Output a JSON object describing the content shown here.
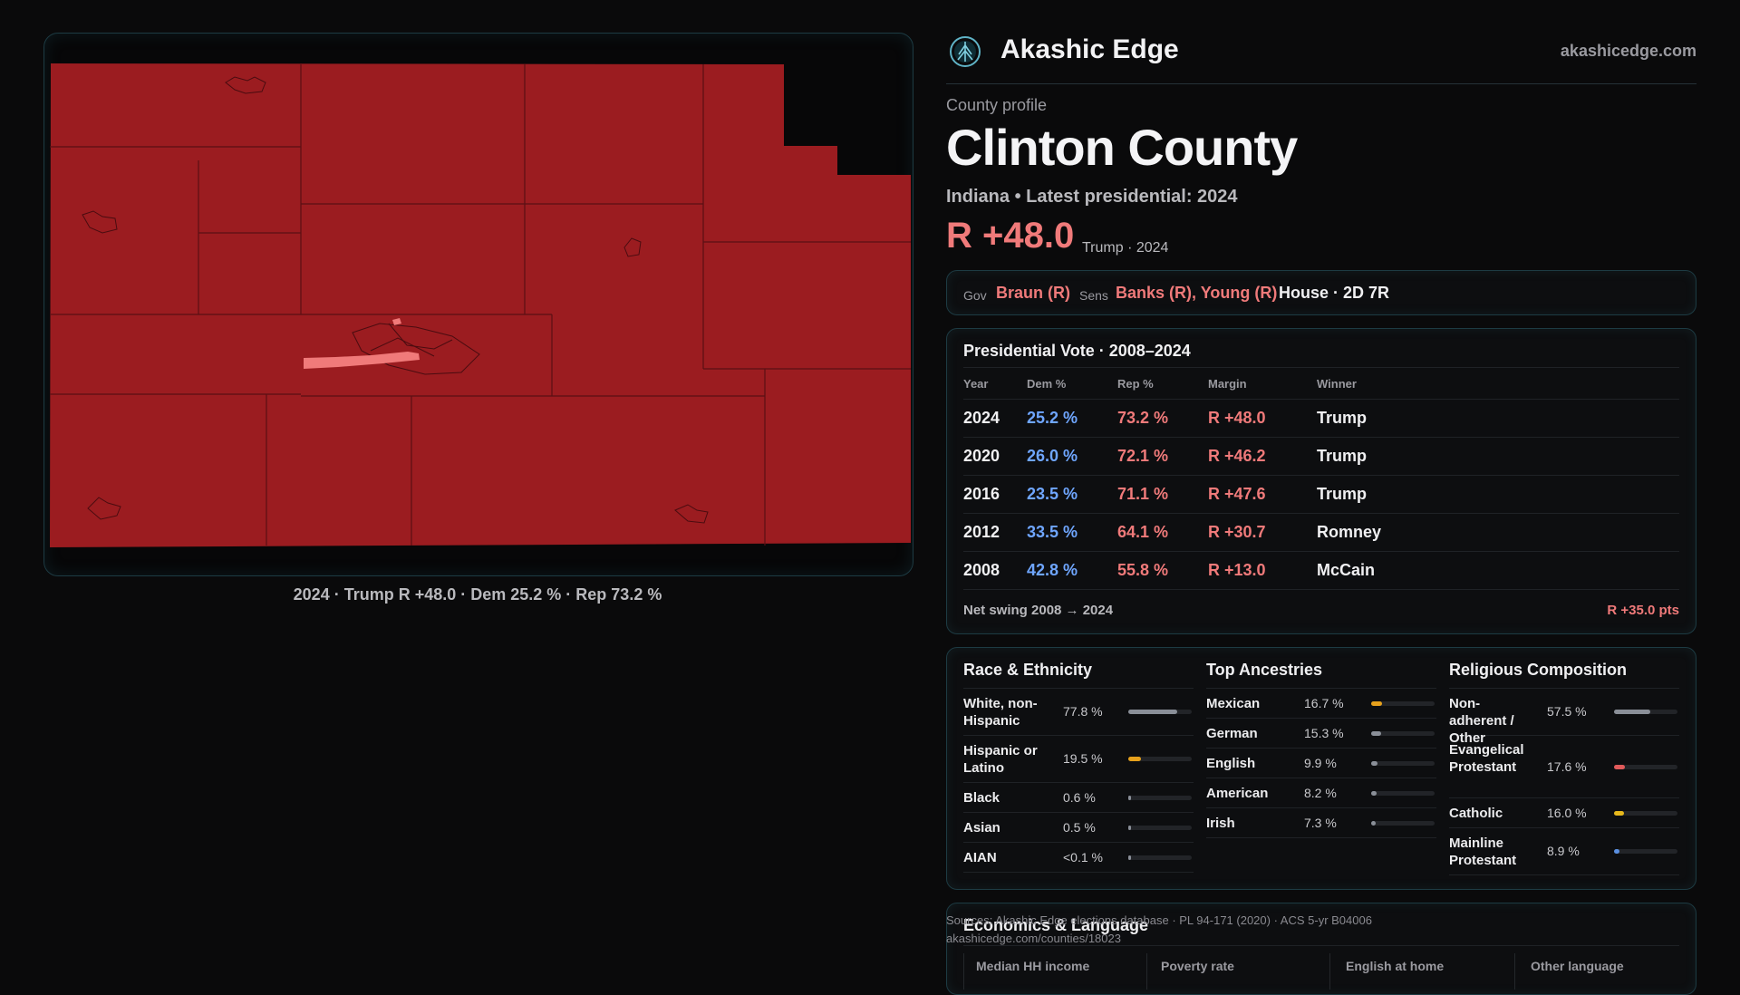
{
  "map": {
    "fill_color": "#9b1c20",
    "highlight_color": "#f07a7a",
    "caption": "2024 · Trump R +48.0 · Dem 25.2 % · Rep 73.2 %"
  },
  "header": {
    "brand": "Akashic Edge",
    "site": "akashicedge.com",
    "logo_icon": "tree-of-life-icon"
  },
  "profile": {
    "eyebrow": "County profile",
    "title": "Clinton County",
    "subtitle": "Indiana • Latest presidential: 2024",
    "margin": "R +48.0",
    "margin_note": "Trump · 2024"
  },
  "offices": {
    "gov_label": "Gov",
    "gov_value": "Braun (R)",
    "sens_label": "Sens",
    "sens_value": "Banks (R), Young (R)",
    "house": "House · 2D 7R"
  },
  "presidential": {
    "title": "Presidential Vote · 2008–2024",
    "headers": [
      "Year",
      "Dem %",
      "Rep %",
      "Margin",
      "Winner"
    ],
    "rows": [
      {
        "year": "2024",
        "dem": "25.2 %",
        "rep": "73.2 %",
        "margin": "R +48.0",
        "winner": "Trump"
      },
      {
        "year": "2020",
        "dem": "26.0 %",
        "rep": "72.1 %",
        "margin": "R +46.2",
        "winner": "Trump"
      },
      {
        "year": "2016",
        "dem": "23.5 %",
        "rep": "71.1 %",
        "margin": "R +47.6",
        "winner": "Trump"
      },
      {
        "year": "2012",
        "dem": "33.5 %",
        "rep": "64.1 %",
        "margin": "R +30.7",
        "winner": "Romney"
      },
      {
        "year": "2008",
        "dem": "42.8 %",
        "rep": "55.8 %",
        "margin": "R +13.0",
        "winner": "McCain"
      }
    ],
    "swing_label": "Net swing 2008 → 2024",
    "swing_value": "R +35.0 pts"
  },
  "race": {
    "title": "Race & Ethnicity",
    "items": [
      {
        "label": "White, non-Hispanic",
        "value": "77.8 %",
        "pct": 77.8,
        "color": "#8a8f98"
      },
      {
        "label": "Hispanic or Latino",
        "value": "19.5 %",
        "pct": 19.5,
        "color": "#e6a11c"
      },
      {
        "label": "Black",
        "value": "0.6 %",
        "pct": 0.6,
        "color": "#8a8f98"
      },
      {
        "label": "Asian",
        "value": "0.5 %",
        "pct": 0.5,
        "color": "#8a8f98"
      },
      {
        "label": "AIAN",
        "value": "<0.1 %",
        "pct": 0.05,
        "color": "#8a8f98"
      }
    ]
  },
  "ancestry": {
    "title": "Top Ancestries",
    "items": [
      {
        "label": "Mexican",
        "value": "16.7 %",
        "pct": 16.7,
        "color": "#e6a11c"
      },
      {
        "label": "German",
        "value": "15.3 %",
        "pct": 15.3,
        "color": "#8a8f98"
      },
      {
        "label": "English",
        "value": "9.9 %",
        "pct": 9.9,
        "color": "#8a8f98"
      },
      {
        "label": "American",
        "value": "8.2 %",
        "pct": 8.2,
        "color": "#8a8f98"
      },
      {
        "label": "Irish",
        "value": "7.3 %",
        "pct": 7.3,
        "color": "#8a8f98"
      }
    ]
  },
  "religion": {
    "title": "Religious Composition",
    "items": [
      {
        "label": "Non-adherent / Other",
        "value": "57.5 %",
        "pct": 57.5,
        "color": "#8a8f98"
      },
      {
        "label": "Evangelical Protestant",
        "value": "17.6 %",
        "pct": 17.6,
        "color": "#e05a5a"
      },
      {
        "label": "Catholic",
        "value": "16.0 %",
        "pct": 16.0,
        "color": "#e6b81c"
      },
      {
        "label": "Mainline Protestant",
        "value": "8.9 %",
        "pct": 8.9,
        "color": "#5a8fe0"
      }
    ]
  },
  "econ": {
    "title": "Economics & Language",
    "cells": [
      "Median HH income",
      "Poverty rate",
      "English at home",
      "Other language"
    ]
  },
  "sources": {
    "line1": "Sources: Akashic Edge elections database · PL 94-171 (2020) · ACS 5-yr B04006",
    "line2": "akashicedge.com/counties/18023"
  }
}
